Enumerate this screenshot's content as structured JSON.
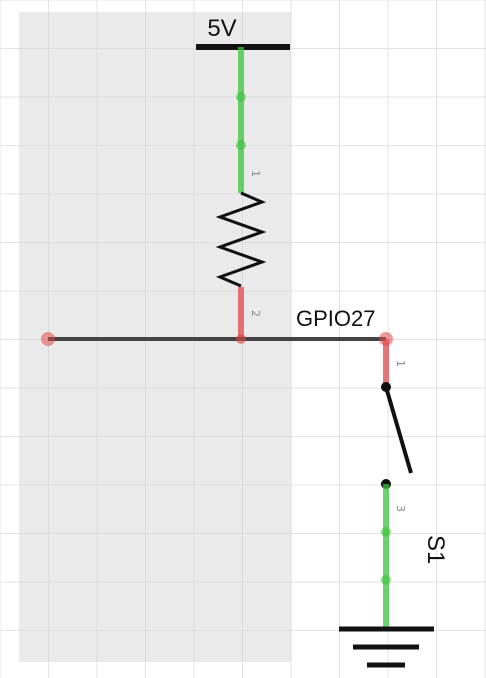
{
  "canvas": {
    "background": "#ffffff",
    "grid_color": "#e3e3e3",
    "selection_fill": "#e9e9e9"
  },
  "colors": {
    "wire": "#444444",
    "pin_connected": "#3cc43c",
    "pin_unconnected": "#e04848",
    "component_line": "#111111"
  },
  "power": {
    "label": "5V"
  },
  "net": {
    "label": "GPIO27"
  },
  "resistor": {
    "pin1": "1",
    "pin2": "2"
  },
  "switch": {
    "label": "S1",
    "pin1": "1",
    "pin3": "3"
  },
  "ground": {
    "icon": "ground-icon"
  }
}
